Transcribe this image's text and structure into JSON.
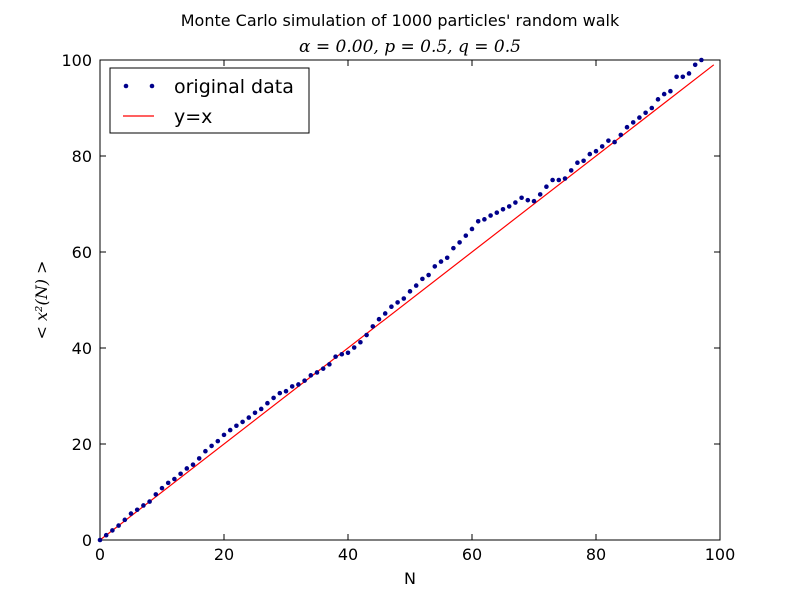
{
  "chart_data": {
    "type": "scatter",
    "title": "Monte Carlo simulation of 1000 particles' random walk",
    "subtitle": "α = 0.00, p = 0.5, q = 0.5",
    "xlabel": "N",
    "ylabel": "< x²(N) >",
    "xlim": [
      0,
      100
    ],
    "ylim": [
      0,
      100
    ],
    "xticks": [
      "0",
      "20",
      "40",
      "60",
      "80",
      "100"
    ],
    "yticks": [
      "0",
      "20",
      "40",
      "60",
      "80",
      "100"
    ],
    "grid": false,
    "legend_position": "top-left",
    "legend": [
      "original data",
      "y=x"
    ],
    "series": [
      {
        "name": "original data",
        "style": "markers",
        "color": "#00008b",
        "x": [
          0,
          1,
          2,
          3,
          4,
          5,
          6,
          7,
          8,
          9,
          10,
          11,
          12,
          13,
          14,
          15,
          16,
          17,
          18,
          19,
          20,
          21,
          22,
          23,
          24,
          25,
          26,
          27,
          28,
          29,
          30,
          31,
          32,
          33,
          34,
          35,
          36,
          37,
          38,
          39,
          40,
          41,
          42,
          43,
          44,
          45,
          46,
          47,
          48,
          49,
          50,
          51,
          52,
          53,
          54,
          55,
          56,
          57,
          58,
          59,
          60,
          61,
          62,
          63,
          64,
          65,
          66,
          67,
          68,
          69,
          70,
          71,
          72,
          73,
          74,
          75,
          76,
          77,
          78,
          79,
          80,
          81,
          82,
          83,
          84,
          85,
          86,
          87,
          88,
          89,
          90,
          91,
          92,
          93,
          94,
          95,
          96,
          97
        ],
        "y": [
          0,
          1.0,
          2.0,
          3.0,
          4.2,
          5.5,
          6.3,
          7.2,
          8.0,
          9.5,
          10.8,
          11.9,
          12.7,
          13.8,
          14.9,
          15.7,
          17.0,
          18.5,
          19.6,
          20.6,
          21.9,
          22.9,
          23.8,
          24.6,
          25.5,
          26.5,
          27.3,
          28.5,
          29.6,
          30.6,
          31.0,
          32.0,
          32.4,
          33.2,
          34.3,
          34.9,
          35.7,
          36.6,
          38.2,
          38.7,
          39.0,
          40.1,
          41.2,
          42.7,
          44.5,
          46.0,
          47.2,
          48.6,
          49.5,
          50.3,
          51.8,
          53.0,
          54.4,
          55.2,
          57.0,
          58.0,
          58.8,
          60.8,
          62.0,
          63.4,
          64.8,
          66.4,
          66.8,
          67.6,
          68.2,
          68.9,
          69.5,
          70.3,
          71.3,
          70.8,
          70.6,
          72.0,
          73.6,
          75.0,
          75.0,
          75.3,
          77.0,
          78.6,
          79.0,
          80.4,
          81.0,
          82.0,
          83.2,
          82.9,
          84.4,
          86.0,
          87.0,
          88.0,
          89.0,
          90.0,
          91.8,
          92.9,
          93.5,
          96.5,
          96.5,
          97.2,
          99.0,
          100.0
        ]
      },
      {
        "name": "y=x",
        "style": "line",
        "color": "#ff0000",
        "x": [
          0,
          99
        ],
        "y": [
          0,
          99
        ]
      }
    ]
  }
}
